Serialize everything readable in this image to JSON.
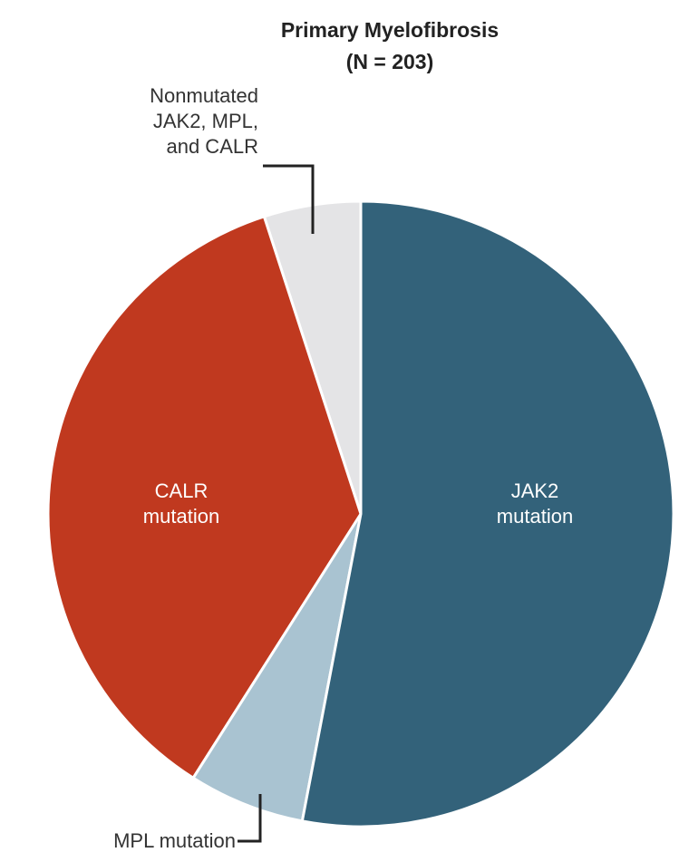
{
  "chart_data": {
    "type": "pie",
    "title": "Primary Myelofibrosis",
    "subtitle": "(N = 203)",
    "categories": [
      "JAK2 mutation",
      "MPL mutation",
      "CALR mutation",
      "Nonmutated JAK2, MPL, and CALR"
    ],
    "values": [
      53,
      6,
      36,
      5
    ],
    "colors": [
      "#33627a",
      "#a9c3d1",
      "#c0391f",
      "#e4e4e6"
    ]
  }
}
